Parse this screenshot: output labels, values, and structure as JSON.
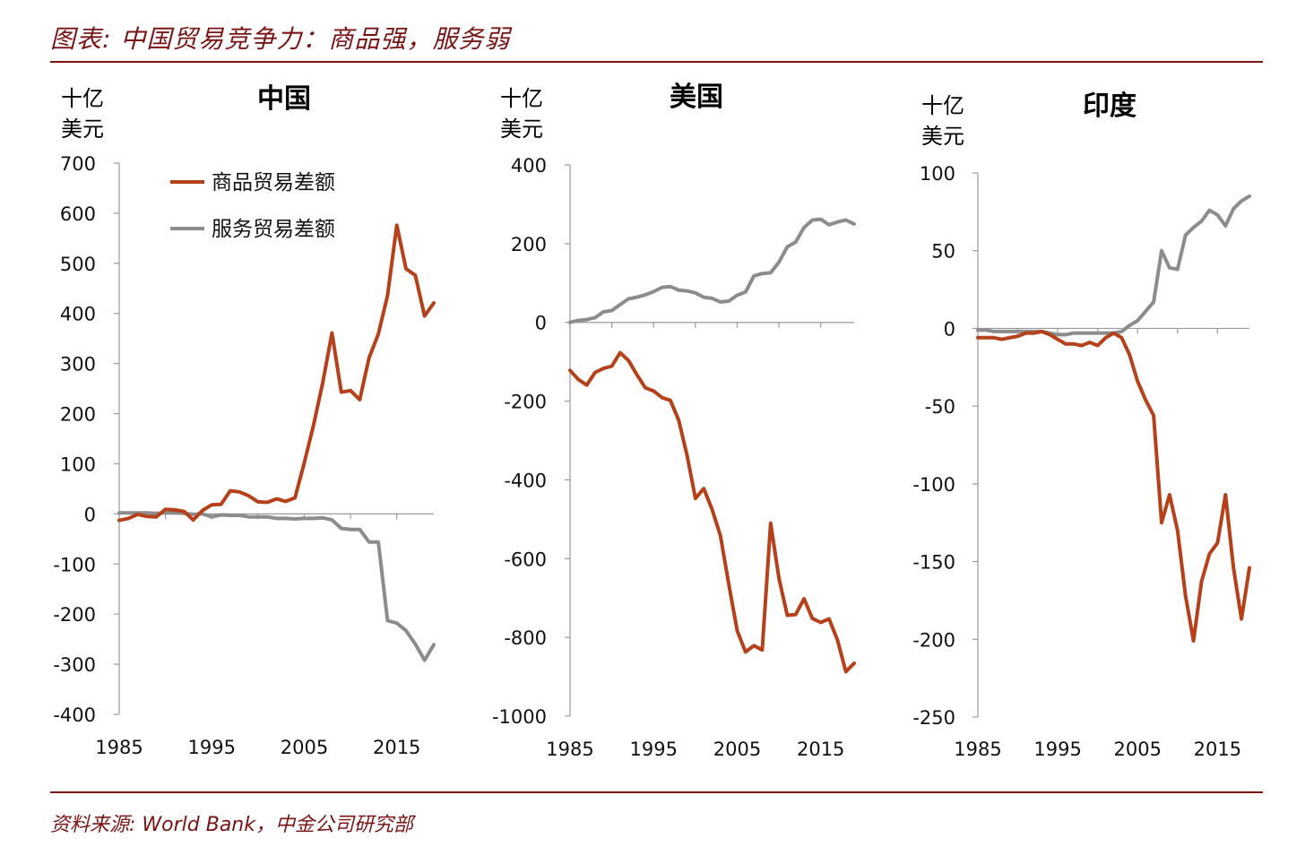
{
  "header": {
    "title": "图表: 中国贸易竞争力：商品强，服务弱",
    "source": "资料来源: World Bank，中金公司研究部"
  },
  "colors": {
    "accent": "#7a1414",
    "goods": "#b5401a",
    "services": "#8c8c8c",
    "axis": "#999999"
  },
  "legend": [
    {
      "label": "商品贸易差额",
      "color": "#b5401a"
    },
    {
      "label": "服务贸易差额",
      "color": "#8c8c8c"
    }
  ],
  "chart_data": [
    {
      "type": "line",
      "title": "中国",
      "ylabel": "十亿美元",
      "xlim": [
        1985,
        2019
      ],
      "ylim": [
        -400,
        700
      ],
      "yticks": [
        700,
        600,
        500,
        400,
        300,
        200,
        100,
        0,
        -100,
        -200,
        -300,
        -400
      ],
      "xticks": [
        1985,
        1995,
        2005,
        2015
      ],
      "grid": false,
      "legend_position": "top-left",
      "x": [
        1985,
        1986,
        1987,
        1988,
        1989,
        1990,
        1991,
        1992,
        1993,
        1994,
        1995,
        1996,
        1997,
        1998,
        1999,
        2000,
        2001,
        2002,
        2003,
        2004,
        2005,
        2006,
        2007,
        2008,
        2009,
        2010,
        2011,
        2012,
        2013,
        2014,
        2015,
        2016,
        2017,
        2018,
        2019
      ],
      "series": [
        {
          "name": "商品贸易差额",
          "color": "#b5401a",
          "values": [
            -13,
            -9,
            -1,
            -5,
            -6,
            9,
            8,
            5,
            -12,
            7,
            18,
            19,
            46,
            44,
            36,
            24,
            23,
            30,
            25,
            32,
            102,
            177,
            262,
            361,
            243,
            246,
            228,
            311,
            359,
            436,
            576,
            489,
            476,
            395,
            421
          ]
        },
        {
          "name": "服务贸易差额",
          "color": "#8c8c8c",
          "values": [
            2,
            2,
            2,
            2,
            1,
            2,
            2,
            1,
            -1,
            0,
            -6,
            -2,
            -3,
            -3,
            -6,
            -6,
            -6,
            -9,
            -9,
            -10,
            -9,
            -9,
            -8,
            -12,
            -29,
            -31,
            -31,
            -56,
            -56,
            -213,
            -218,
            -233,
            -260,
            -292,
            -261
          ]
        }
      ]
    },
    {
      "type": "line",
      "title": "美国",
      "ylabel": "十亿美元",
      "xlim": [
        1985,
        2019
      ],
      "ylim": [
        -1000,
        400
      ],
      "yticks": [
        400,
        200,
        0,
        -200,
        -400,
        -600,
        -800,
        -1000
      ],
      "xticks": [
        1985,
        1995,
        2005,
        2015
      ],
      "grid": false,
      "x": [
        1985,
        1986,
        1987,
        1988,
        1989,
        1990,
        1991,
        1992,
        1993,
        1994,
        1995,
        1996,
        1997,
        1998,
        1999,
        2000,
        2001,
        2002,
        2003,
        2004,
        2005,
        2006,
        2007,
        2008,
        2009,
        2010,
        2011,
        2012,
        2013,
        2014,
        2015,
        2016,
        2017,
        2018,
        2019
      ],
      "series": [
        {
          "name": "商品贸易差额",
          "color": "#b5401a",
          "values": [
            -122,
            -145,
            -159,
            -127,
            -117,
            -111,
            -77,
            -97,
            -133,
            -166,
            -174,
            -191,
            -198,
            -248,
            -337,
            -447,
            -422,
            -475,
            -542,
            -665,
            -783,
            -837,
            -821,
            -832,
            -510,
            -650,
            -744,
            -742,
            -702,
            -752,
            -762,
            -753,
            -807,
            -887,
            -866
          ]
        },
        {
          "name": "服务贸易差额",
          "color": "#8c8c8c",
          "values": [
            0,
            5,
            7,
            12,
            27,
            30,
            45,
            60,
            64,
            70,
            78,
            89,
            91,
            82,
            80,
            75,
            64,
            61,
            52,
            54,
            69,
            77,
            118,
            124,
            126,
            153,
            192,
            204,
            241,
            260,
            262,
            248,
            255,
            260,
            250
          ]
        }
      ]
    },
    {
      "type": "line",
      "title": "印度",
      "ylabel": "十亿美元",
      "xlim": [
        1985,
        2019
      ],
      "ylim": [
        -250,
        100
      ],
      "yticks": [
        100,
        50,
        0,
        -50,
        -100,
        -150,
        -200,
        -250
      ],
      "xticks": [
        1985,
        1995,
        2005,
        2015
      ],
      "grid": false,
      "x": [
        1985,
        1986,
        1987,
        1988,
        1989,
        1990,
        1991,
        1992,
        1993,
        1994,
        1995,
        1996,
        1997,
        1998,
        1999,
        2000,
        2001,
        2002,
        2003,
        2004,
        2005,
        2006,
        2007,
        2008,
        2009,
        2010,
        2011,
        2012,
        2013,
        2014,
        2015,
        2016,
        2017,
        2018,
        2019
      ],
      "series": [
        {
          "name": "商品贸易差额",
          "color": "#b5401a",
          "values": [
            -6,
            -6,
            -6,
            -7,
            -6,
            -5,
            -3,
            -3,
            -2,
            -4,
            -7,
            -10,
            -10,
            -11,
            -9,
            -11,
            -6,
            -3,
            -6,
            -17,
            -34,
            -46,
            -56,
            -125,
            -107,
            -130,
            -172,
            -201,
            -163,
            -145,
            -138,
            -107,
            -154,
            -187,
            -154
          ]
        },
        {
          "name": "服务贸易差额",
          "color": "#8c8c8c",
          "values": [
            -1,
            -1,
            -2,
            -2,
            -2,
            -2,
            -2,
            -2,
            -2,
            -3,
            -4,
            -4,
            -3,
            -3,
            -3,
            -3,
            -3,
            -3,
            -2,
            2,
            5,
            11,
            17,
            50,
            39,
            38,
            60,
            65,
            69,
            76,
            73,
            66,
            77,
            82,
            85
          ]
        }
      ]
    }
  ]
}
